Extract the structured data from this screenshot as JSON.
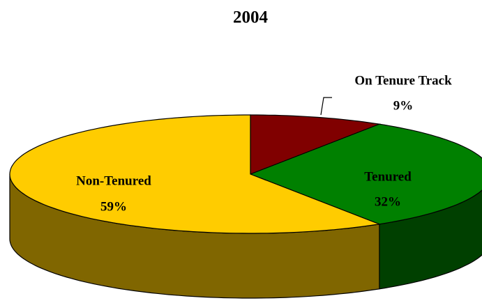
{
  "chart_data": {
    "type": "pie",
    "title": "2004",
    "categories": [
      "On Tenure Track",
      "Tenured",
      "Non-Tenured"
    ],
    "values": [
      9,
      32,
      59
    ],
    "value_labels": [
      "9%",
      "32%",
      "59%"
    ],
    "colors": [
      "#800000",
      "#008000",
      "#ffcc00"
    ],
    "three_d": true
  }
}
